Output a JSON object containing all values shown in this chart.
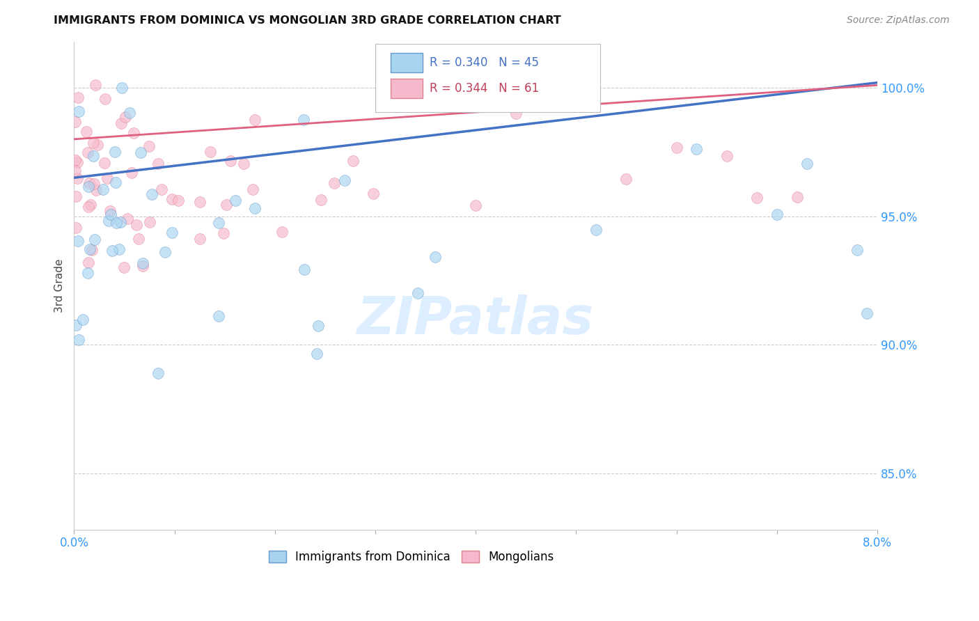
{
  "title": "IMMIGRANTS FROM DOMINICA VS MONGOLIAN 3RD GRADE CORRELATION CHART",
  "source": "Source: ZipAtlas.com",
  "ylabel": "3rd Grade",
  "yticks": [
    "85.0%",
    "90.0%",
    "95.0%",
    "100.0%"
  ],
  "ytick_vals": [
    0.85,
    0.9,
    0.95,
    1.0
  ],
  "xmin": 0.0,
  "xmax": 0.08,
  "ymin": 0.828,
  "ymax": 1.018,
  "r1": "0.340",
  "n1": "45",
  "r2": "0.344",
  "n2": "61",
  "scatter1_color": "#a8d4f0",
  "scatter2_color": "#f5b8cc",
  "trendline1_color": "#4472c4",
  "trendline2_color": "#e06080",
  "legend_text_color1": "#4472c4",
  "legend_text_color2": "#c0405a",
  "background_color": "#ffffff",
  "watermark_color": "#dceeff",
  "grid_color": "#cccccc",
  "axis_color": "#3399ff",
  "title_color": "#111111"
}
